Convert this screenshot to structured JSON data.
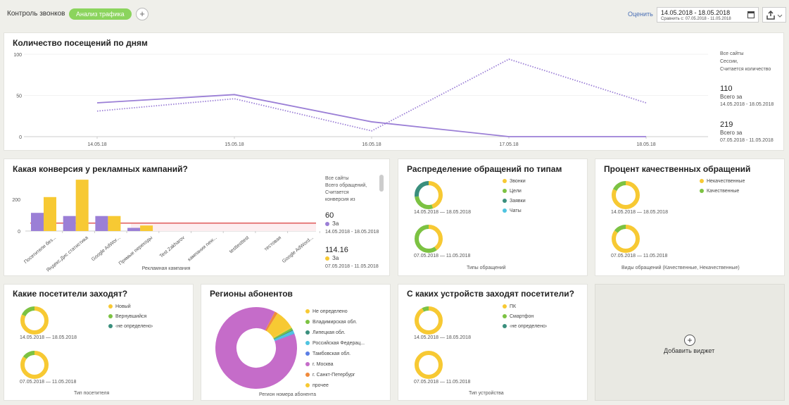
{
  "topbar": {
    "title": "Контроль звонков",
    "active_tab": "Анализ трафика",
    "add_label": "+",
    "rate_label": "Оценить",
    "date_range": "14.05.2018 - 18.05.2018",
    "compare_range": "Сравнить с: 07.05.2018 - 11.05.2018"
  },
  "visits": {
    "title": "Количество посещений по дням",
    "side_lines": [
      "Все сайты",
      "Сессии,",
      "Считается количество"
    ],
    "current_value": "110",
    "current_label": "Всего за",
    "current_dates": "14.05.2018 - 18.05.2018",
    "prev_value": "219",
    "prev_label": "Всего за",
    "prev_dates": "07.05.2018 - 11.05.2018"
  },
  "conversion": {
    "title": "Какая конверсия у рекламных кампаний?",
    "side_lines": [
      "Все сайты",
      "Всего обращений,",
      "Считается",
      "конверсия из"
    ],
    "current_value": "60",
    "current_label": "За",
    "current_dates": "14.05.2018 - 18.05.2018",
    "prev_value": "114.16",
    "prev_label": "За",
    "prev_dates": "07.05.2018 - 11.05.2018"
  },
  "types": {
    "title": "Распределение обращений по типам",
    "date1": "14.05.2018 — 18.05.2018",
    "date2": "07.05.2018 — 11.05.2018",
    "caption": "Типы обращений",
    "legend": [
      "Звонки",
      "Цели",
      "Заявки",
      "Чаты"
    ]
  },
  "quality": {
    "title": "Процент качественных обращений",
    "date1": "14.05.2018 — 18.05.2018",
    "date2": "07.05.2018 — 11.05.2018",
    "caption": "Виды обращений (Качественные, Некачественные)",
    "legend": [
      "Некачественные",
      "Качественные"
    ]
  },
  "visitors": {
    "title": "Какие посетители заходят?",
    "date1": "14.05.2018 — 18.05.2018",
    "date2": "07.05.2018 — 11.05.2018",
    "caption": "Тип посетителя",
    "legend": [
      "Новый",
      "Вернувшийся",
      "‹не определено›"
    ]
  },
  "regions": {
    "title": "Регионы абонентов",
    "caption": "Регион номера абонента",
    "legend": [
      "Не определено",
      "Владимирская обл.",
      "Липецкая обл.",
      "Российская Федерац...",
      "Тамбовская обл.",
      "г. Москва",
      "г. Санкт-Петербург",
      "прочее"
    ]
  },
  "devices": {
    "title": "С каких устройств заходят посетители?",
    "date1": "14.05.2018 — 18.05.2018",
    "date2": "07.05.2018 — 11.05.2018",
    "caption": "Тип устройства",
    "legend": [
      "ПК",
      "Смартфон",
      "‹не определено›"
    ]
  },
  "add_widget": {
    "icon": "+",
    "label": "Добавить виджет"
  },
  "colors": {
    "purple": "#9b7fd6",
    "yellow": "#f7c933",
    "green": "#7cc242",
    "teal": "#3a8f7d",
    "cyan": "#4fc4e0",
    "red": "#e05a5a",
    "orange": "#f08a3c",
    "magenta": "#c56cc9",
    "blue": "#5b7ee5",
    "accent_green": "#8bd45d"
  },
  "chart_data": [
    {
      "type": "line",
      "title": "Количество посещений по дням",
      "x": [
        "14.05.18",
        "15.05.18",
        "16.05.18",
        "17.05.18",
        "18.05.18"
      ],
      "ylim": [
        0,
        100
      ],
      "yticks": [
        0,
        50,
        100
      ],
      "series": [
        {
          "values": [
            41,
            51,
            18,
            0,
            0
          ],
          "style": "solid",
          "color": "#9b7fd6"
        },
        {
          "values": [
            31,
            46,
            7,
            94,
            41
          ],
          "style": "dotted",
          "color": "#9b7fd6"
        }
      ]
    },
    {
      "type": "bar",
      "title": "Какая конверсия у рекламных кампаний?",
      "xlabel": "Рекламная кампания",
      "categories": [
        "Посетители без...",
        "Яндекс.Дис статистика",
        "Google AdWor...",
        "Прямые переходы",
        "Test Zakharov",
        "кампания new...",
        "testtesttest",
        "тестовая",
        "Google AdWord..."
      ],
      "ylim": [
        0,
        330
      ],
      "yticks": [
        0,
        200
      ],
      "series": [
        {
          "values": [
            115,
            95,
            95,
            20,
            0,
            0,
            0,
            0,
            0
          ],
          "color": "#9b7fd6"
        },
        {
          "values": [
            215,
            325,
            95,
            35,
            0,
            0,
            0,
            0,
            0
          ],
          "color": "#f7c933"
        }
      ],
      "reference_line": 50
    },
    {
      "type": "pie",
      "title": "Регионы абонентов",
      "categories": [
        "Не определено",
        "Владимирская обл.",
        "Липецкая обл.",
        "Российская Федерац...",
        "Тамбовская обл.",
        "г. Москва",
        "г. Санкт-Петербург",
        "прочее"
      ],
      "values": [
        0.5,
        0.8,
        0.4,
        1.2,
        0.4,
        88,
        1.2,
        7.5
      ]
    }
  ]
}
